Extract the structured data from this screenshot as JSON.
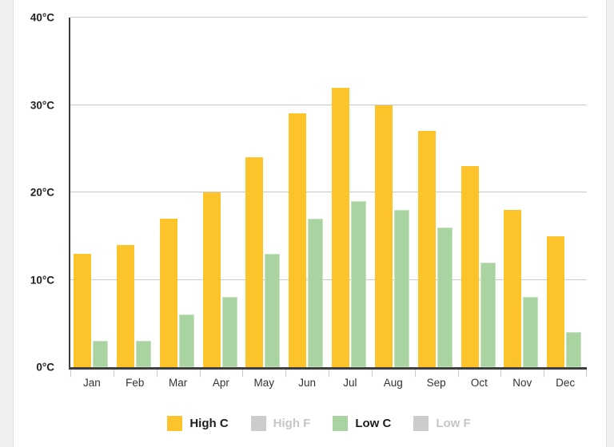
{
  "page": {
    "background": "#FFFFFF",
    "side_strip_color": "#F0F0F0"
  },
  "chart_data": {
    "type": "bar",
    "title": "",
    "xlabel": "",
    "ylabel": "",
    "categories": [
      "Jan",
      "Feb",
      "Mar",
      "Apr",
      "May",
      "Jun",
      "Jul",
      "Aug",
      "Sep",
      "Oct",
      "Nov",
      "Dec"
    ],
    "series": [
      {
        "name": "High C",
        "color": "#FDC32B",
        "label_color": "#1D1D1D",
        "muted": false,
        "values": [
          13,
          14,
          17,
          20,
          24,
          29,
          32,
          30,
          27,
          23,
          18,
          15
        ]
      },
      {
        "name": "High F",
        "color": "#CCCCCC",
        "label_color": "#C6C6C6",
        "muted": true,
        "values": []
      },
      {
        "name": "Low C",
        "color": "#A9D4A2",
        "label_color": "#1D1D1D",
        "muted": false,
        "values": [
          3,
          3,
          6,
          8,
          13,
          17,
          19,
          18,
          16,
          12,
          8,
          4
        ]
      },
      {
        "name": "Low F",
        "color": "#CCCCCC",
        "label_color": "#C6C6C6",
        "muted": true,
        "values": []
      }
    ],
    "ylim": [
      0,
      40
    ],
    "yticks": [
      {
        "value": 0,
        "label": "0°C"
      },
      {
        "value": 10,
        "label": "10°C"
      },
      {
        "value": 20,
        "label": "20°C"
      },
      {
        "value": 30,
        "label": "30°C"
      },
      {
        "value": 40,
        "label": "40°C"
      }
    ],
    "grid": true,
    "legend_position": "bottom"
  },
  "colors": {
    "axis": "#3E3E3E",
    "gridline": "#C8C8C8",
    "x_tick": "#BCC8D8",
    "axis_label": "#222222",
    "month_label": "#333333"
  }
}
